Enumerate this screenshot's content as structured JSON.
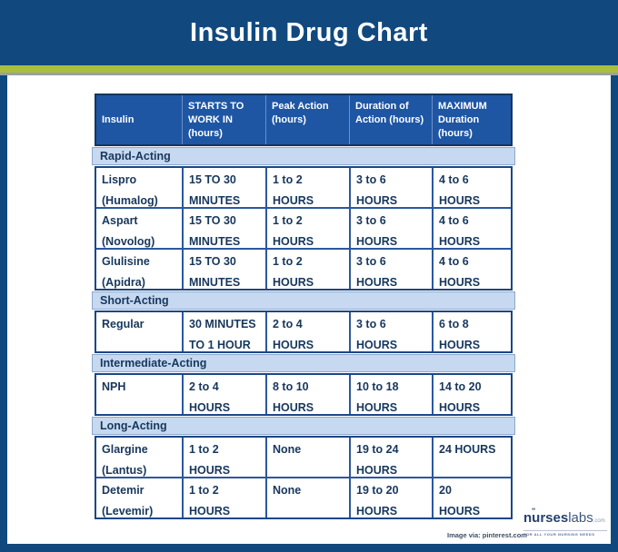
{
  "banner": {
    "title": "Insulin Drug Chart"
  },
  "colors": {
    "banner_navy": "#11497f",
    "accent_green": "#a9bf3c",
    "header_blue": "#1e56a4",
    "section_light_blue": "#c6d9f0",
    "grid_blue": "#2a58a0",
    "text_navy": "#17375d"
  },
  "chart_data": {
    "type": "table",
    "title": "Insulin Drug Chart",
    "columns": [
      "Insulin",
      "STARTS TO\nWORK IN\n(hours)",
      "Peak Action\n(hours)",
      "Duration of\nAction (hours)",
      "MAXIMUM\nDuration\n(hours)"
    ],
    "sections": [
      {
        "label": "Rapid-Acting",
        "rows": [
          {
            "cells": [
              "Lispro\n(Humalog)",
              "15 TO 30\nMINUTES",
              "1 to 2\nHOURS",
              "3 to 6\nHOURS",
              "4 to 6\nHOURS"
            ]
          },
          {
            "cells": [
              "Aspart\n(Novolog)",
              "15 TO 30\nMINUTES",
              "1 to 2\nHOURS",
              "3 to 6\nHOURS",
              "4 to 6\nHOURS"
            ]
          },
          {
            "cells": [
              "Glulisine\n(Apidra)",
              "15 TO 30\nMINUTES",
              "1 to 2\nHOURS",
              "3 to 6\nHOURS",
              "4 to 6\nHOURS"
            ]
          }
        ]
      },
      {
        "label": "Short-Acting",
        "rows": [
          {
            "cells": [
              "Regular",
              "30 MINUTES\nTO 1 HOUR",
              "2 to 4\nHOURS",
              "3 to 6\nHOURS",
              "6 to 8\nHOURS"
            ]
          }
        ]
      },
      {
        "label": "Intermediate-Acting",
        "rows": [
          {
            "cells": [
              "NPH",
              "2 to 4\nHOURS",
              "8 to 10\nHOURS",
              "10 to 18\nHOURS",
              "14 to 20\nHOURS"
            ]
          }
        ]
      },
      {
        "label": "Long-Acting",
        "rows": [
          {
            "cells": [
              "Glargine\n(Lantus)",
              "1 to 2\nHOURS",
              "None",
              "19 to 24\nHOURS",
              "24 HOURS"
            ]
          },
          {
            "cells": [
              "Detemir\n(Levemir)",
              "1 to 2\nHOURS",
              "None",
              "19 to 20\nHOURS",
              "20\nHOURS"
            ]
          }
        ]
      }
    ]
  },
  "footer": {
    "credit": "Image via: pinterest.com",
    "logo": {
      "prefix": "n",
      "u": "u",
      "mid": "rses",
      "suffix": "labs",
      "tld": ".com",
      "tagline": "FOR ALL YOUR NURSING NEEDS"
    }
  }
}
